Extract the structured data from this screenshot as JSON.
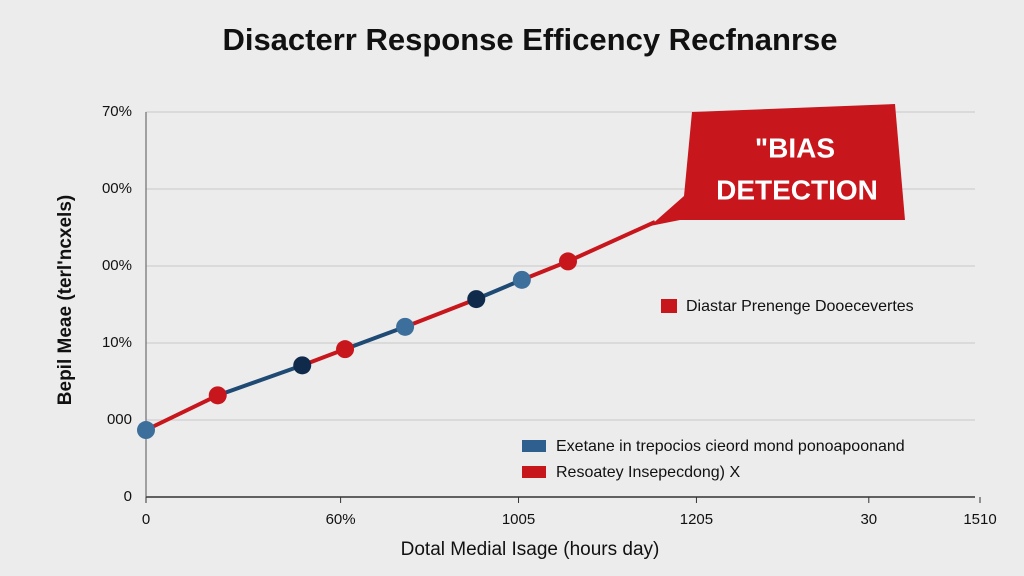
{
  "chart_data": {
    "type": "line",
    "title": "Disacterr Response Efficency Recfnanrse",
    "x_label": "Dotal Medial Isage (hours day)",
    "y_label": "Bepil Meae (terl'ncxels)",
    "x": [
      0,
      12.9,
      28.1,
      35.8,
      46.6,
      59.4,
      67.6,
      75.9
    ],
    "values": [
      8.7,
      13.2,
      17.1,
      19.2,
      22.1,
      25.7,
      28.2,
      30.6
    ],
    "point_colors": [
      "#3d6f9c",
      "#c8161d",
      "#0f2a4a",
      "#c8161d",
      "#3d6f9c",
      "#0f2a4a",
      "#3d6f9c",
      "#c8161d"
    ],
    "line_colors": [
      "#c8161d",
      "#1f4a73"
    ],
    "xlim": [
      0,
      150
    ],
    "ylim": [
      0,
      50
    ],
    "xticks": [
      0,
      {
        "value": 35,
        "label": "60%"
      },
      {
        "value": 67,
        "label": "1005"
      },
      {
        "value": 99,
        "label": "1205"
      },
      {
        "value": 130,
        "label": "30"
      },
      {
        "value": 150,
        "label": "1510"
      }
    ],
    "yticks": [
      0,
      {
        "value": 10,
        "label": "000"
      },
      {
        "value": 20,
        "label": "10%"
      },
      {
        "value": 30,
        "label": "00%"
      },
      {
        "value": 40,
        "label": "00%"
      },
      {
        "value": 50,
        "label": "70%"
      }
    ],
    "grid": true,
    "annotation": [
      "\"BIAS",
      "DETECTION"
    ],
    "legend": [
      {
        "name": "Diastar Prenenge Dooecevertes",
        "color": "#c8161d"
      }
    ],
    "legend2": [
      {
        "name": "Exetane in trepocios cieord mond ponoapoonand",
        "color": "#2f5f8f"
      },
      {
        "name": "Resoatey Insepecdong) X",
        "color": "#c8161d"
      }
    ]
  }
}
